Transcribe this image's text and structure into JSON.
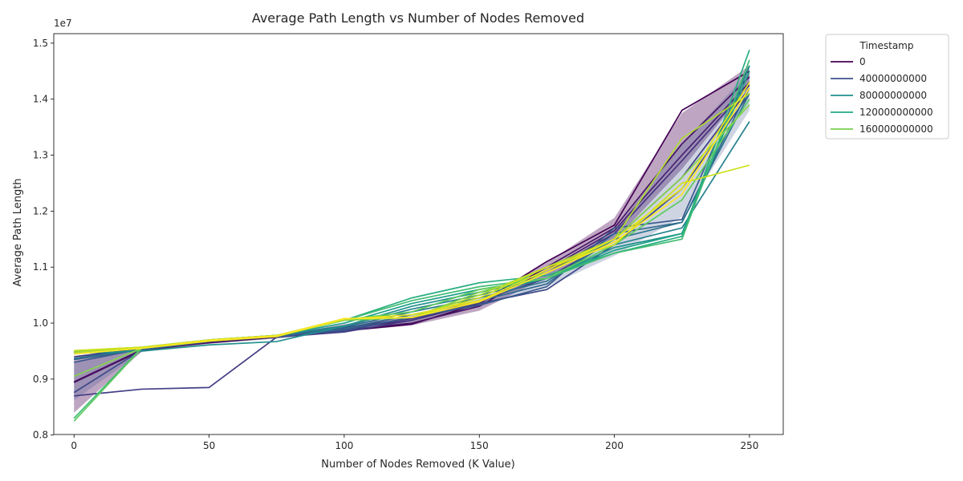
{
  "chart_data": {
    "type": "line",
    "title": "Average Path Length vs Number of Nodes Removed",
    "xlabel": "Number of Nodes Removed (K Value)",
    "ylabel": "Average Path Length",
    "y_offset_label": "1e7",
    "xlim": [
      -7.5,
      262.5
    ],
    "ylim": [
      0.801,
      1.517
    ],
    "x_ticks": [
      0,
      50,
      100,
      150,
      200,
      250
    ],
    "y_ticks": [
      0.8,
      0.9,
      1.0,
      1.1,
      1.2,
      1.3,
      1.4,
      1.5
    ],
    "y_tick_labels": [
      "0.8",
      "0.9",
      "1.0",
      "1.1",
      "1.2",
      "1.3",
      "1.4",
      "1.5"
    ],
    "grid": false,
    "x": [
      0,
      25,
      50,
      75,
      100,
      125,
      150,
      175,
      200,
      225,
      250
    ],
    "legend": {
      "title": "Timestamp",
      "placement": "outside-right",
      "entries": [
        {
          "label": "0",
          "color": "#440154"
        },
        {
          "label": "40000000000",
          "color": "#3b528b"
        },
        {
          "label": "80000000000",
          "color": "#21908d"
        },
        {
          "label": "120000000000",
          "color": "#22a884"
        },
        {
          "label": "160000000000",
          "color": "#7ad151"
        }
      ]
    },
    "bands": [
      {
        "color": "#440154",
        "opacity": 0.35,
        "lower": [
          0.84,
          0.949,
          0.963,
          0.973,
          0.985,
          0.996,
          1.022,
          1.082,
          1.148,
          1.275,
          1.425
        ],
        "upper": [
          0.938,
          0.954,
          0.968,
          0.978,
          0.998,
          1.012,
          1.038,
          1.108,
          1.188,
          1.375,
          1.46
        ]
      },
      {
        "color": "#3b528b",
        "opacity": 0.25,
        "lower": [
          0.862,
          0.948,
          0.963,
          0.972,
          0.984,
          1.002,
          1.03,
          1.065,
          1.12,
          1.19,
          1.38
        ],
        "upper": [
          0.93,
          0.955,
          0.968,
          0.977,
          0.995,
          1.015,
          1.045,
          1.09,
          1.165,
          1.32,
          1.45
        ]
      }
    ],
    "series": [
      {
        "color": "#440154",
        "values": [
          0.895,
          0.952,
          0.965,
          0.975,
          0.986,
          0.998,
          1.035,
          1.11,
          1.175,
          1.38,
          1.45
        ]
      },
      {
        "color": "#471365",
        "values": [
          0.894,
          0.951,
          0.966,
          0.976,
          0.987,
          1.0,
          1.03,
          1.1,
          1.17,
          1.32,
          1.44
        ]
      },
      {
        "color": "#482173",
        "values": [
          0.935,
          0.953,
          0.967,
          0.977,
          0.99,
          1.005,
          1.036,
          1.095,
          1.165,
          1.3,
          1.43
        ]
      },
      {
        "color": "#46307e",
        "values": [
          0.94,
          0.954,
          0.968,
          0.977,
          0.992,
          1.008,
          1.04,
          1.09,
          1.16,
          1.29,
          1.425
        ]
      },
      {
        "color": "#433e85",
        "values": [
          0.87,
          0.882,
          0.885,
          0.975,
          0.984,
          1.005,
          1.04,
          1.08,
          1.15,
          1.26,
          1.42
        ]
      },
      {
        "color": "#3e4989",
        "values": [
          0.876,
          0.952,
          0.967,
          0.976,
          0.986,
          1.01,
          1.035,
          1.06,
          1.14,
          1.24,
          1.41
        ]
      },
      {
        "color": "#38588c",
        "values": [
          0.93,
          0.954,
          0.968,
          0.977,
          0.988,
          1.01,
          1.032,
          1.065,
          1.17,
          1.185,
          1.46
        ]
      },
      {
        "color": "#31688e",
        "values": [
          0.935,
          0.953,
          0.968,
          0.976,
          0.99,
          1.015,
          1.04,
          1.07,
          1.16,
          1.18,
          1.42
        ]
      },
      {
        "color": "#2c728e",
        "values": [
          0.937,
          0.954,
          0.969,
          0.978,
          0.993,
          1.02,
          1.045,
          1.075,
          1.15,
          1.18,
          1.41
        ]
      },
      {
        "color": "#26828e",
        "values": [
          0.945,
          0.955,
          0.97,
          0.978,
          0.995,
          1.025,
          1.05,
          1.08,
          1.14,
          1.17,
          1.36
        ]
      },
      {
        "color": "#21918c",
        "values": [
          0.946,
          0.95,
          0.961,
          0.967,
          0.995,
          1.03,
          1.055,
          1.08,
          1.135,
          1.16,
          1.46
        ]
      },
      {
        "color": "#1fa088",
        "values": [
          0.948,
          0.956,
          0.969,
          0.978,
          1.0,
          1.035,
          1.06,
          1.08,
          1.13,
          1.16,
          1.45
        ]
      },
      {
        "color": "#28ae80",
        "values": [
          0.95,
          0.957,
          0.97,
          0.978,
          1.005,
          1.045,
          1.072,
          1.085,
          1.125,
          1.155,
          1.488
        ]
      },
      {
        "color": "#3fbc73",
        "values": [
          0.83,
          0.956,
          0.969,
          0.978,
          1.005,
          1.04,
          1.065,
          1.08,
          1.125,
          1.15,
          1.47
        ]
      },
      {
        "color": "#5ec962",
        "values": [
          0.825,
          0.955,
          0.969,
          0.977,
          1.006,
          1.02,
          1.06,
          1.08,
          1.14,
          1.22,
          1.4
        ]
      },
      {
        "color": "#84d44b",
        "values": [
          0.905,
          0.955,
          0.968,
          0.977,
          1.005,
          1.01,
          1.055,
          1.09,
          1.15,
          1.26,
          1.39
        ]
      },
      {
        "color": "#addc30",
        "values": [
          0.948,
          0.956,
          0.969,
          0.977,
          1.008,
          1.01,
          1.05,
          1.1,
          1.15,
          1.33,
          1.41
        ]
      },
      {
        "color": "#cde11d",
        "values": [
          0.951,
          0.957,
          0.97,
          0.978,
          1.008,
          1.01,
          1.045,
          1.1,
          1.14,
          1.25,
          1.282
        ]
      },
      {
        "color": "#e5e419",
        "values": [
          0.945,
          0.955,
          0.968,
          0.976,
          1.007,
          1.015,
          1.04,
          1.095,
          1.15,
          1.24,
          1.43
        ]
      },
      {
        "color": "#fde725",
        "values": [
          0.945,
          0.955,
          0.969,
          0.977,
          1.008,
          1.01,
          1.038,
          1.09,
          1.145,
          1.23,
          1.42
        ]
      }
    ]
  }
}
